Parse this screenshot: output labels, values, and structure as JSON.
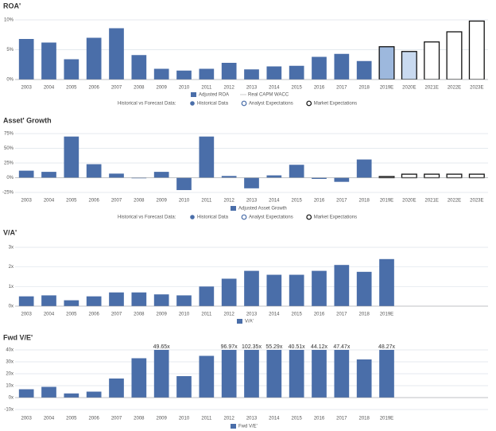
{
  "chart_data": [
    {
      "type": "bar",
      "title": "ROA'",
      "categories": [
        "2003",
        "2004",
        "2005",
        "2006",
        "2007",
        "2008",
        "2009",
        "2010",
        "2011",
        "2012",
        "2013",
        "2014",
        "2015",
        "2016",
        "2017",
        "2018",
        "2019E",
        "2020E",
        "2021E",
        "2022E",
        "2023E"
      ],
      "values": [
        6.8,
        6.2,
        3.4,
        7.0,
        8.6,
        4.1,
        1.8,
        1.5,
        1.8,
        2.8,
        1.7,
        2.2,
        2.3,
        3.8,
        4.3,
        3.1,
        5.5,
        4.7,
        6.3,
        8.0,
        9.8
      ],
      "colors": [
        "#4a6ea9",
        "#4a6ea9",
        "#4a6ea9",
        "#4a6ea9",
        "#4a6ea9",
        "#4a6ea9",
        "#4a6ea9",
        "#4a6ea9",
        "#4a6ea9",
        "#4a6ea9",
        "#4a6ea9",
        "#4a6ea9",
        "#4a6ea9",
        "#4a6ea9",
        "#4a6ea9",
        "#4a6ea9",
        "#9db8dd",
        "#c9daf0",
        "#ffffff",
        "#ffffff",
        "#ffffff"
      ],
      "edge_colors": [
        null,
        null,
        null,
        null,
        null,
        null,
        null,
        null,
        null,
        null,
        null,
        null,
        null,
        null,
        null,
        null,
        "#111111",
        "#111111",
        "#111111",
        "#111111",
        "#111111"
      ],
      "ylim": [
        0,
        10
      ],
      "yticks": [
        {
          "value": 0,
          "label": "0%"
        },
        {
          "value": 5,
          "label": "5%"
        },
        {
          "value": 10,
          "label": "10%"
        }
      ],
      "grid": true,
      "legend": [
        "Adjusted ROA",
        "Real CAPM WACC"
      ],
      "forecast_legend": {
        "title": "Historical vs Forecast Data:",
        "items": [
          "Historical Data",
          "Analyst Expectations",
          "Market Expectations"
        ]
      }
    },
    {
      "type": "bar",
      "title": "Asset' Growth",
      "categories": [
        "2003",
        "2004",
        "2005",
        "2006",
        "2007",
        "2008",
        "2009",
        "2010",
        "2011",
        "2012",
        "2013",
        "2014",
        "2015",
        "2016",
        "2017",
        "2018",
        "2019E",
        "2020E",
        "2021E",
        "2022E",
        "2023E"
      ],
      "values": [
        12,
        10,
        70,
        23,
        7,
        -1,
        10,
        -21,
        70,
        3,
        -18,
        4,
        22,
        -2,
        -7,
        31,
        2,
        6,
        6,
        6,
        6
      ],
      "colors": [
        "#4a6ea9",
        "#4a6ea9",
        "#4a6ea9",
        "#4a6ea9",
        "#4a6ea9",
        "#4a6ea9",
        "#4a6ea9",
        "#4a6ea9",
        "#4a6ea9",
        "#4a6ea9",
        "#4a6ea9",
        "#4a6ea9",
        "#4a6ea9",
        "#4a6ea9",
        "#4a6ea9",
        "#4a6ea9",
        "#ffffff",
        "#ffffff",
        "#ffffff",
        "#ffffff",
        "#ffffff"
      ],
      "edge_colors": [
        null,
        null,
        null,
        null,
        null,
        null,
        null,
        null,
        null,
        null,
        null,
        null,
        null,
        null,
        null,
        null,
        "#111111",
        "#111111",
        "#111111",
        "#111111",
        "#111111"
      ],
      "ylim": [
        -25,
        75
      ],
      "yticks": [
        {
          "value": -25,
          "label": "-25%"
        },
        {
          "value": 0,
          "label": "0%"
        },
        {
          "value": 25,
          "label": "25%"
        },
        {
          "value": 50,
          "label": "50%"
        },
        {
          "value": 75,
          "label": "75%"
        }
      ],
      "grid": true,
      "legend": [
        "Adjusted Asset Growth"
      ],
      "forecast_legend": {
        "title": "Historical vs Forecast Data:",
        "items": [
          "Historical Data",
          "Analyst Expectations",
          "Market Expectations"
        ]
      }
    },
    {
      "type": "bar",
      "title": "V/A'",
      "categories": [
        "2003",
        "2004",
        "2005",
        "2006",
        "2007",
        "2008",
        "2009",
        "2010",
        "2011",
        "2012",
        "2013",
        "2014",
        "2015",
        "2016",
        "2017",
        "2018",
        "2019E"
      ],
      "values": [
        0.5,
        0.55,
        0.3,
        0.5,
        0.7,
        0.7,
        0.6,
        0.55,
        1.0,
        1.4,
        1.8,
        1.6,
        1.6,
        1.8,
        2.1,
        1.75,
        2.4
      ],
      "color": "#4a6ea9",
      "ylim": [
        0,
        3
      ],
      "yticks": [
        {
          "value": 0,
          "label": "0x"
        },
        {
          "value": 1,
          "label": "1x"
        },
        {
          "value": 2,
          "label": "2x"
        },
        {
          "value": 3,
          "label": "3x"
        }
      ],
      "grid": true,
      "legend": [
        "V/A'"
      ]
    },
    {
      "type": "bar",
      "title": "Fwd V/E'",
      "categories": [
        "2003",
        "2004",
        "2005",
        "2006",
        "2007",
        "2008",
        "2009",
        "2010",
        "2011",
        "2012",
        "2013",
        "2014",
        "2015",
        "2016",
        "2017",
        "2018",
        "2019E"
      ],
      "values": [
        7,
        9,
        3.5,
        5,
        16,
        33,
        49.65,
        18,
        35,
        96.97,
        102.35,
        55.29,
        40.51,
        44.12,
        47.47,
        32,
        48.27
      ],
      "value_labels": [
        null,
        null,
        null,
        null,
        null,
        null,
        "49.65x",
        null,
        null,
        "96.97x",
        "102.35x",
        "55.29x",
        "40.51x",
        "44.12x",
        "47.47x",
        null,
        "48.27x"
      ],
      "color": "#4a6ea9",
      "ylim": [
        -10,
        40
      ],
      "yticks": [
        {
          "value": -10,
          "label": "-10x"
        },
        {
          "value": 0,
          "label": "0x"
        },
        {
          "value": 10,
          "label": "10x"
        },
        {
          "value": 20,
          "label": "20x"
        },
        {
          "value": 30,
          "label": "30x"
        },
        {
          "value": 40,
          "label": "40x"
        }
      ],
      "grid": true,
      "legend": [
        "Fwd V/E'"
      ]
    }
  ]
}
